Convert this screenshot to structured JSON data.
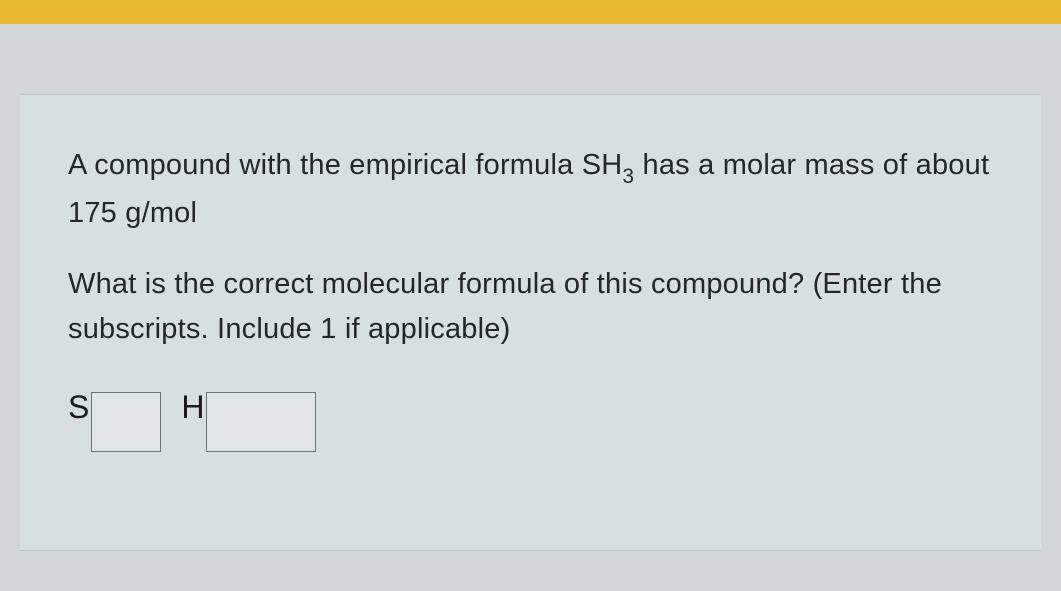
{
  "colors": {
    "top_bar": "#e7b92e",
    "page_bg": "#d3d6d8",
    "card_bg": "#d6e1df",
    "text": "#242628",
    "input_border": "#6c7374",
    "input_bg": "#dfe6e5"
  },
  "question": {
    "line1_pre": "A compound with the empirical formula SH",
    "line1_sub": "3",
    "line1_post": " has a molar mass of about 175 g/mol",
    "line2": "What is the correct molecular formula of this compound? (Enter the subscripts.  Include 1 if applicable)"
  },
  "answer": {
    "element1_label": "S",
    "element1_value": "",
    "element2_label": "H",
    "element2_value": ""
  }
}
